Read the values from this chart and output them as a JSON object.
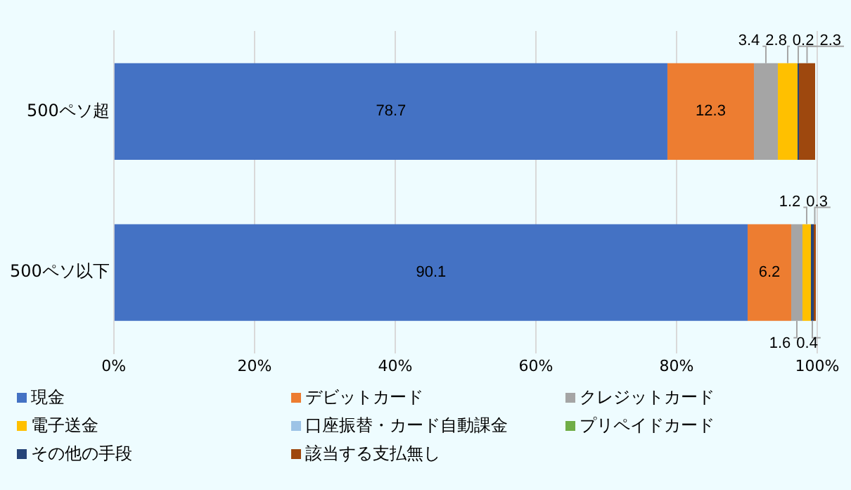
{
  "chart_data": {
    "type": "bar",
    "orientation": "horizontal",
    "stacked": true,
    "categories": [
      "500ペソ超",
      "500ペソ以下"
    ],
    "series": [
      {
        "name": "現金",
        "color": "#4472c4",
        "values": [
          78.7,
          90.1
        ]
      },
      {
        "name": "デビットカード",
        "color": "#ed7d31",
        "values": [
          12.3,
          6.2
        ]
      },
      {
        "name": "クレジットカード",
        "color": "#a5a5a5",
        "values": [
          3.4,
          1.6
        ]
      },
      {
        "name": "電子送金",
        "color": "#ffc000",
        "values": [
          2.8,
          1.2
        ]
      },
      {
        "name": "口座振替・カード自動課金",
        "color": "#9dc3e6",
        "values": [
          null,
          null
        ]
      },
      {
        "name": "プリペイドカード",
        "color": "#70ad47",
        "values": [
          null,
          null
        ]
      },
      {
        "name": "その他の手段",
        "color": "#264478",
        "values": [
          0.2,
          0.4
        ]
      },
      {
        "name": "該当する支払無し",
        "color": "#9e480e",
        "values": [
          2.3,
          0.3
        ]
      }
    ],
    "xlim": [
      0,
      100
    ],
    "xticks": [
      {
        "value": 0,
        "label": "0%"
      },
      {
        "value": 20,
        "label": "20%"
      },
      {
        "value": 40,
        "label": "40%"
      },
      {
        "value": 60,
        "label": "60%"
      },
      {
        "value": 80,
        "label": "80%"
      },
      {
        "value": 100,
        "label": "100%"
      }
    ],
    "grid": "x",
    "legend": "bottom",
    "data_labels": true
  }
}
